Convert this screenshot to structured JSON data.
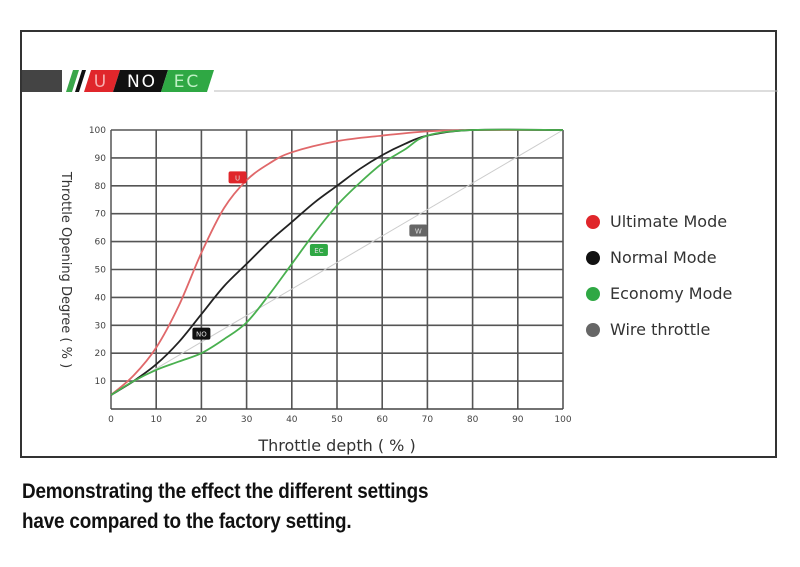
{
  "header_strip": {
    "badges": [
      "U",
      "NO",
      "EC"
    ],
    "colors": {
      "U": "#e0262b",
      "NO": "#111111",
      "EC": "#2fa844"
    }
  },
  "caption": {
    "line1": "Demonstrating the effect the different settings",
    "line2": "have compared to the factory setting."
  },
  "chart_data": {
    "type": "line",
    "title": "",
    "xlabel": "Throttle depth ( % )",
    "ylabel": "Throttle Opening Degree ( % )",
    "xlim": [
      0,
      100
    ],
    "ylim": [
      0,
      100
    ],
    "xticks": [
      "0",
      "10",
      "20",
      "30",
      "40",
      "50",
      "60",
      "70",
      "80",
      "90",
      "100"
    ],
    "yticks": [
      "10",
      "20",
      "30",
      "40",
      "50",
      "60",
      "70",
      "80",
      "90",
      "100"
    ],
    "grid": true,
    "legend_position": "right",
    "series": [
      {
        "name": "Ultimate Mode",
        "badge": "U",
        "color": "#e0262b",
        "stroke": "#e0686a",
        "badge_at": [
          28,
          83
        ],
        "x": [
          0,
          5,
          10,
          15,
          20,
          25,
          30,
          35,
          40,
          50,
          60,
          70,
          80,
          100
        ],
        "y": [
          5,
          12,
          22,
          37,
          56,
          72,
          82,
          88,
          92,
          96,
          98,
          99.5,
          100,
          100
        ]
      },
      {
        "name": "Normal Mode",
        "badge": "NO",
        "color": "#111111",
        "stroke": "#222222",
        "badge_at": [
          20,
          27
        ],
        "x": [
          0,
          5,
          10,
          15,
          20,
          25,
          30,
          35,
          40,
          45,
          50,
          55,
          60,
          65,
          70,
          80,
          100
        ],
        "y": [
          5,
          10,
          16,
          24,
          34,
          44,
          52,
          60,
          67,
          74,
          80,
          86,
          91,
          95,
          98,
          100,
          100
        ]
      },
      {
        "name": "Economy Mode",
        "badge": "EC",
        "color": "#2fa844",
        "stroke": "#49b04f",
        "badge_at": [
          46,
          57
        ],
        "x": [
          0,
          5,
          10,
          15,
          20,
          25,
          30,
          35,
          40,
          45,
          50,
          55,
          60,
          65,
          70,
          80,
          100
        ],
        "y": [
          5,
          10,
          14,
          17,
          20,
          25,
          31,
          41,
          52,
          63,
          73,
          81,
          88,
          93,
          98,
          100,
          100
        ]
      },
      {
        "name": "Wire throttle",
        "badge": "W",
        "color": "#666666",
        "stroke": "#cccccc",
        "badge_at": [
          68,
          64
        ],
        "x": [
          0,
          100
        ],
        "y": [
          5,
          100
        ]
      }
    ]
  }
}
